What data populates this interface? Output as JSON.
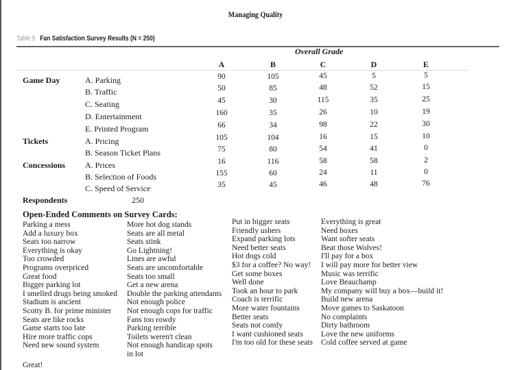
{
  "page_title": "Managing Quality",
  "table": {
    "label": "Table 5",
    "caption": "Fan Satisfaction Survey Results (N = 250)",
    "group_header": "Overall Grade",
    "columns": [
      "A",
      "B",
      "C",
      "D",
      "E"
    ],
    "rows": [
      {
        "section": "Game Day",
        "item": "A. Parking",
        "values": [
          "90",
          "105",
          "45",
          "5",
          "5"
        ]
      },
      {
        "section": "",
        "item": "B. Traffic",
        "values": [
          "50",
          "85",
          "48",
          "52",
          "15"
        ]
      },
      {
        "section": "",
        "item": "C. Seating",
        "values": [
          "45",
          "30",
          "115",
          "35",
          "25"
        ]
      },
      {
        "section": "",
        "item": "D. Entertainment",
        "values": [
          "160",
          "35",
          "26",
          "10",
          "19"
        ]
      },
      {
        "section": "",
        "item": "E. Printed Program",
        "values": [
          "66",
          "34",
          "98",
          "22",
          "30"
        ]
      },
      {
        "section": "Tickets",
        "item": "A. Pricing",
        "values": [
          "105",
          "104",
          "16",
          "15",
          "10"
        ]
      },
      {
        "section": "",
        "item": "B. Season Ticket Plans",
        "values": [
          "75",
          "80",
          "54",
          "41",
          "0"
        ]
      },
      {
        "section": "Concessions",
        "item": "A. Prices",
        "values": [
          "16",
          "116",
          "58",
          "58",
          "2"
        ]
      },
      {
        "section": "",
        "item": "B. Selection of Foods",
        "values": [
          "155",
          "60",
          "24",
          "11",
          "0"
        ]
      },
      {
        "section": "",
        "item": "C. Speed of Service",
        "values": [
          "35",
          "45",
          "46",
          "48",
          "76"
        ]
      }
    ],
    "respondents_label": "Respondents",
    "respondents_value": "250"
  },
  "comments": {
    "title": "Open-Ended Comments on Survey Cards:",
    "columns": [
      [
        "Parking a mess",
        "Add a luxury box",
        "Seats too narrow",
        "Everything is okay",
        "Too crowded",
        "Programs overpriced",
        "Great food",
        "Bigger parking lot",
        "I smelled drugs being smoked",
        "Stadium is ancient",
        "Scotty B. for prime minister",
        "Seats are like rocks",
        "Game starts too late",
        "Hire more traffic cops",
        "Need new sound system"
      ],
      [
        "More hot dog stands",
        "Seats are all metal",
        "Seats stink",
        "Go Lightning!",
        "Lines are awful",
        "Seats are uncomfortable",
        "Seats too small",
        "Get a new arena",
        "Double the parking attendants",
        "Not enough police",
        "Not enough cops for traffic",
        "Fans too rowdy",
        "Parking terrible",
        "Toilets weren't clean",
        "Not enough handicap spots",
        "in lot"
      ],
      [
        "Put in bigger seats",
        "Friendly ushers",
        "Expand parking lots",
        "Need better seats",
        "Hot dogs cold",
        "$3 for a coffee? No way!",
        "Get some boxes",
        "Well done",
        "Took an hour to park",
        "Coach is terrific",
        "More water fountains",
        "Better seats",
        "Seats not comfy",
        "I want cushioned seats",
        "I'm too old for these seats"
      ],
      [
        "Everything is great",
        "Need boxes",
        "Want softer seats",
        "Beat those Wolves!",
        "I'll pay for a box",
        "I will pay more for better view",
        "Music was terrific",
        "Love Beauchamp",
        "My company will buy a box—build it!",
        "Build new arena",
        "Move games to Saskatoon",
        "No complaints",
        "Dirty bathroom",
        "Love the new uniforms",
        "Cold coffee served at game"
      ]
    ],
    "trailing": "Great!"
  }
}
